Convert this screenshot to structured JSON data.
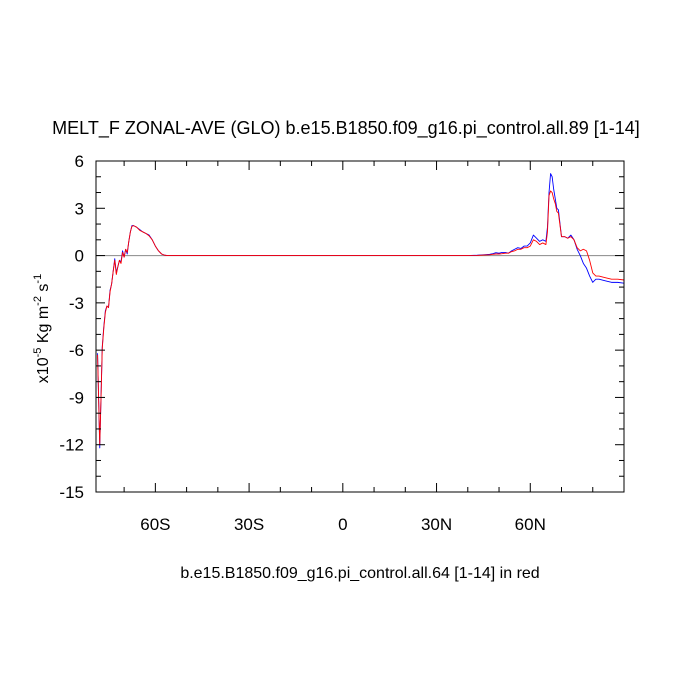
{
  "chart_data": {
    "type": "line",
    "title": "MELT_F ZONAL-AVE (GLO) b.e15.B1850.f09_g16.pi_control.all.89 [1-14]",
    "xlabel": "b.e15.B1850.f09_g16.pi_control.all.64 [1-14] in red",
    "ylabel": {
      "base": "x10",
      "exp1": "-5",
      "mid": " Kg m",
      "exp2": "-2",
      "mid2": " s",
      "exp3": "-1"
    },
    "xlim": [
      -79,
      90
    ],
    "ylim": [
      -15,
      6
    ],
    "xticks": [
      {
        "value": -60,
        "label": "60S"
      },
      {
        "value": -30,
        "label": "30S"
      },
      {
        "value": 0,
        "label": "0"
      },
      {
        "value": 30,
        "label": "30N"
      },
      {
        "value": 60,
        "label": "60N"
      }
    ],
    "yticks": [
      {
        "value": 6,
        "label": "6"
      },
      {
        "value": 3,
        "label": "3"
      },
      {
        "value": 0,
        "label": "0"
      },
      {
        "value": -3,
        "label": "-3"
      },
      {
        "value": -6,
        "label": "-6"
      },
      {
        "value": -9,
        "label": "-9"
      },
      {
        "value": -12,
        "label": "-12"
      },
      {
        "value": -15,
        "label": "-15"
      }
    ],
    "zero_line": true,
    "series": [
      {
        "color": "#0000ff",
        "x": [
          -78.5,
          -77.8,
          -77.4,
          -77.0,
          -76.5,
          -76.0,
          -75.5,
          -75.0,
          -74.5,
          -74.0,
          -73.5,
          -73.0,
          -72.5,
          -72.0,
          -71.5,
          -71.0,
          -70.5,
          -70.0,
          -69.5,
          -69.0,
          -68.5,
          -68.0,
          -67.5,
          -67.0,
          -66.5,
          -66.0,
          -65.0,
          -64.0,
          -63.0,
          -62.0,
          -61.0,
          -60.0,
          -59.0,
          -58.0,
          -57.0,
          -56.0,
          -55.0,
          -54.0,
          -53.0,
          -52.0,
          -50.0,
          -45.0,
          -40.0,
          -30.0,
          -20.0,
          -10.0,
          0.0,
          10.0,
          20.0,
          30.0,
          40.0,
          43.0,
          45.0,
          47.0,
          48.0,
          49.0,
          50.0,
          51.0,
          52.0,
          53.0,
          54.0,
          55.0,
          56.0,
          57.0,
          58.0,
          59.0,
          60.0,
          61.0,
          62.0,
          63.0,
          64.0,
          65.0,
          65.5,
          66.0,
          66.5,
          67.0,
          67.5,
          68.0,
          68.5,
          69.0,
          70.0,
          71.0,
          72.0,
          73.0,
          74.0,
          75.0,
          76.0,
          77.0,
          78.0,
          79.0,
          80.0,
          81.0,
          82.0,
          84.0,
          86.0,
          88.0,
          90.0
        ],
        "y": [
          -6.2,
          -12.2,
          -9.0,
          -5.8,
          -4.5,
          -3.5,
          -3.2,
          -3.3,
          -2.2,
          -1.8,
          -1.0,
          -0.2,
          -1.1,
          -0.7,
          -0.3,
          -0.4,
          0.3,
          -0.1,
          0.4,
          0.1,
          0.9,
          1.5,
          1.9,
          1.9,
          1.85,
          1.8,
          1.65,
          1.5,
          1.4,
          1.3,
          1.0,
          0.6,
          0.3,
          0.1,
          0.02,
          0.0,
          0.0,
          0.0,
          0.0,
          0.0,
          0.0,
          0.0,
          0.0,
          0.0,
          0.0,
          0.0,
          0.0,
          0.0,
          0.0,
          0.0,
          0.0,
          0.02,
          0.05,
          0.08,
          0.12,
          0.18,
          0.15,
          0.2,
          0.2,
          0.15,
          0.3,
          0.4,
          0.5,
          0.45,
          0.6,
          0.6,
          0.8,
          1.3,
          1.1,
          0.9,
          1.0,
          0.9,
          1.8,
          4.0,
          5.2,
          5.0,
          4.2,
          3.6,
          3.0,
          2.9,
          1.2,
          1.2,
          1.1,
          1.3,
          1.0,
          0.4,
          0.0,
          -0.5,
          -0.8,
          -1.3,
          -1.7,
          -1.5,
          -1.5,
          -1.6,
          -1.7,
          -1.7,
          -1.75
        ]
      },
      {
        "color": "#ff0000",
        "x": [
          -78.5,
          -77.8,
          -77.4,
          -77.0,
          -76.5,
          -76.0,
          -75.5,
          -75.0,
          -74.5,
          -74.0,
          -73.5,
          -73.0,
          -72.5,
          -72.0,
          -71.5,
          -71.0,
          -70.5,
          -70.0,
          -69.5,
          -69.0,
          -68.5,
          -68.0,
          -67.5,
          -67.0,
          -66.5,
          -66.0,
          -65.0,
          -64.0,
          -63.0,
          -62.0,
          -61.0,
          -60.0,
          -59.0,
          -58.0,
          -57.0,
          -56.0,
          -55.0,
          -54.0,
          -53.0,
          -52.0,
          -50.0,
          -45.0,
          -40.0,
          -30.0,
          -20.0,
          -10.0,
          0.0,
          10.0,
          20.0,
          30.0,
          40.0,
          43.0,
          45.0,
          47.0,
          48.0,
          49.0,
          50.0,
          51.0,
          52.0,
          53.0,
          54.0,
          55.0,
          56.0,
          57.0,
          58.0,
          59.0,
          60.0,
          61.0,
          62.0,
          63.0,
          64.0,
          65.0,
          65.5,
          66.0,
          66.5,
          67.0,
          67.5,
          68.0,
          68.5,
          69.0,
          70.0,
          71.0,
          72.0,
          73.0,
          74.0,
          75.0,
          76.0,
          77.0,
          78.0,
          79.0,
          80.0,
          81.0,
          82.0,
          84.0,
          86.0,
          88.0,
          90.0
        ],
        "y": [
          -6.3,
          -12.0,
          -9.1,
          -5.9,
          -4.6,
          -3.6,
          -3.2,
          -3.3,
          -2.3,
          -1.8,
          -1.0,
          -0.3,
          -1.2,
          -0.7,
          -0.3,
          -0.5,
          0.2,
          -0.1,
          0.4,
          0.2,
          0.9,
          1.5,
          1.85,
          1.9,
          1.85,
          1.8,
          1.6,
          1.5,
          1.4,
          1.25,
          1.0,
          0.6,
          0.3,
          0.1,
          0.02,
          0.0,
          0.0,
          0.0,
          0.0,
          0.0,
          0.0,
          0.0,
          0.0,
          0.0,
          0.0,
          0.0,
          0.0,
          0.0,
          0.0,
          0.0,
          0.0,
          0.01,
          0.03,
          0.05,
          0.08,
          0.1,
          0.1,
          0.12,
          0.15,
          0.15,
          0.25,
          0.3,
          0.4,
          0.4,
          0.5,
          0.5,
          0.6,
          1.0,
          0.9,
          0.7,
          0.8,
          0.7,
          1.5,
          3.8,
          4.1,
          4.0,
          3.6,
          3.3,
          2.8,
          2.7,
          1.2,
          1.2,
          1.1,
          1.2,
          1.0,
          0.5,
          0.3,
          0.4,
          0.3,
          -0.3,
          -1.1,
          -1.3,
          -1.3,
          -1.4,
          -1.5,
          -1.5,
          -1.55
        ]
      }
    ]
  }
}
